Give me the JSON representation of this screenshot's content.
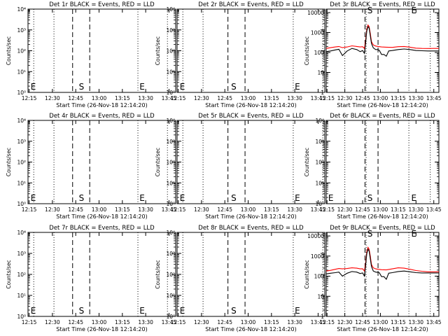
{
  "figure": {
    "ylabel": "Counts/sec",
    "xlabel": "Start Time (26-Nov-18 12:14:20)",
    "time_start_min": 734.3,
    "time_end_min": 829.3,
    "colors": {
      "events": "#000000",
      "lld": "#ff0000",
      "axes": "#000000",
      "background": "#ffffff"
    }
  },
  "chart_data": [
    {
      "id": "det-1r",
      "type": "line",
      "title": "Det 1r BLACK = Events, RED = LLD",
      "xlabel": "Start Time (26-Nov-18 12:14:20)",
      "ylabel": "Counts/sec",
      "xlim": [
        734.3,
        829.3
      ],
      "xticks": [
        735,
        750,
        765,
        780,
        795,
        810,
        825
      ],
      "xtick_labels": [
        "12:15",
        "12:30",
        "12:45",
        "13:00",
        "13:15",
        "13:30",
        "13:45"
      ],
      "yscale": "log",
      "ylim": [
        1,
        10000
      ],
      "yticks": [
        1,
        10,
        100,
        1000,
        10000
      ],
      "ytick_labels": [
        "10⁰",
        "10¹",
        "10²",
        "10³",
        "10⁴"
      ],
      "dotted_lines": [
        738,
        751,
        805,
        824
      ],
      "dashed_lines": [
        763,
        774
      ],
      "markers": [
        {
          "text": "E",
          "x": 736,
          "y": 1.5
        },
        {
          "text": "S",
          "x": 767,
          "y": 1.5
        },
        {
          "text": "E",
          "x": 806,
          "y": 1.5
        }
      ],
      "series": []
    },
    {
      "id": "det-2r",
      "type": "line",
      "title": "Det 2r BLACK = Events, RED = LLD",
      "xlabel": "Start Time (26-Nov-18 12:14:20)",
      "ylabel": "Counts/sec",
      "xlim": [
        734.3,
        829.3
      ],
      "xticks": [
        735,
        750,
        765,
        780,
        795,
        810,
        825
      ],
      "xtick_labels": [
        "12:15",
        "12:30",
        "12:45",
        "13:00",
        "13:15",
        "13:30",
        "13:45"
      ],
      "yscale": "log",
      "ylim": [
        1,
        10000
      ],
      "yticks": [
        1,
        10,
        100,
        1000,
        10000
      ],
      "ytick_labels": [
        "10⁰",
        "10¹",
        "10²",
        "10³",
        "10⁴"
      ],
      "dotted_lines": [
        738,
        751,
        809,
        828
      ],
      "dashed_lines": [
        767,
        778
      ],
      "markers": [
        {
          "text": "E",
          "x": 736,
          "y": 1.5
        },
        {
          "text": "S",
          "x": 769,
          "y": 1.5
        },
        {
          "text": "E",
          "x": 810,
          "y": 1.5
        }
      ],
      "series": []
    },
    {
      "id": "det-3r",
      "type": "line",
      "title": "Det 3r BLACK = Events, RED = LLD",
      "xlabel": "Start Time (26-Nov-18 12:14:20)",
      "ylabel": "Counts/sec",
      "xlim": [
        734.3,
        829.3
      ],
      "xticks": [
        735,
        750,
        765,
        780,
        795,
        810,
        825
      ],
      "xtick_labels": [
        "12:15",
        "12:30",
        "12:45",
        "13:00",
        "13:15",
        "13:30",
        "13:45"
      ],
      "yscale": "log",
      "ylim": [
        1,
        15000
      ],
      "yticks": [
        1,
        10,
        100,
        1000,
        10000
      ],
      "ytick_labels": [
        "1",
        "10",
        "100",
        "1000",
        "10000"
      ],
      "dotted_lines": [
        750,
        768,
        804,
        822
      ],
      "dashed_lines": [
        767,
        778
      ],
      "markers": [
        {
          "text": "S",
          "x": 769,
          "y": 15000
        },
        {
          "text": "E",
          "x": 806,
          "y": 15000
        }
      ],
      "series": [
        {
          "name": "LLD",
          "color": "#ff0000",
          "x": [
            734.3,
            738,
            742,
            745,
            748,
            752,
            756,
            760,
            763,
            765,
            766.5,
            767.5,
            768.5,
            769.5,
            770.5,
            771.5,
            772.5,
            774,
            776,
            778,
            781,
            785,
            790,
            795,
            800,
            805,
            810,
            815,
            820,
            825,
            829.3
          ],
          "y": [
            160,
            175,
            190,
            200,
            175,
            190,
            215,
            200,
            190,
            195,
            160,
            400,
            1500,
            2400,
            2000,
            900,
            350,
            240,
            210,
            200,
            190,
            185,
            180,
            195,
            200,
            185,
            165,
            160,
            158,
            160,
            160
          ]
        },
        {
          "name": "Events",
          "color": "#000000",
          "x": [
            734.3,
            738,
            742,
            745,
            748,
            752,
            756,
            760,
            763,
            765,
            766.5,
            767.5,
            768.5,
            769.5,
            770.5,
            771.5,
            772.5,
            774,
            776,
            777.5,
            779,
            781,
            783,
            785,
            787,
            790,
            795,
            800,
            805,
            810,
            815,
            820,
            825,
            829.3
          ],
          "y": [
            110,
            120,
            135,
            145,
            70,
            120,
            160,
            140,
            110,
            125,
            90,
            300,
            1200,
            2000,
            1700,
            700,
            280,
            170,
            140,
            140,
            130,
            80,
            80,
            65,
            120,
            125,
            140,
            150,
            140,
            125,
            122,
            120,
            120,
            120
          ]
        }
      ]
    },
    {
      "id": "det-4r",
      "type": "line",
      "title": "Det 4r BLACK = Events, RED = LLD",
      "xlabel": "Start Time (26-Nov-18 12:14:20)",
      "ylabel": "Counts/sec",
      "xlim": [
        734.3,
        829.3
      ],
      "xticks": [
        735,
        750,
        765,
        780,
        795,
        810,
        825
      ],
      "xtick_labels": [
        "12:15",
        "12:30",
        "12:45",
        "13:00",
        "13:15",
        "13:30",
        "13:45"
      ],
      "yscale": "log",
      "ylim": [
        1,
        10000
      ],
      "yticks": [
        1,
        10,
        100,
        1000,
        10000
      ],
      "ytick_labels": [
        "10⁰",
        "10¹",
        "10²",
        "10³",
        "10⁴"
      ],
      "dotted_lines": [
        738,
        751,
        805,
        824
      ],
      "dashed_lines": [
        763,
        774
      ],
      "markers": [
        {
          "text": "E",
          "x": 736,
          "y": 1.5
        },
        {
          "text": "S",
          "x": 767,
          "y": 1.5
        },
        {
          "text": "E",
          "x": 806,
          "y": 1.5
        }
      ],
      "series": []
    },
    {
      "id": "det-5r",
      "type": "line",
      "title": "Det 5r BLACK = Events, RED = LLD",
      "xlabel": "Start Time (26-Nov-18 12:14:20)",
      "ylabel": "Counts/sec",
      "xlim": [
        734.3,
        829.3
      ],
      "xticks": [
        735,
        750,
        765,
        780,
        795,
        810,
        825
      ],
      "xtick_labels": [
        "12:15",
        "12:30",
        "12:45",
        "13:00",
        "13:15",
        "13:30",
        "13:45"
      ],
      "yscale": "log",
      "ylim": [
        1,
        10000
      ],
      "yticks": [
        1,
        10,
        100,
        1000,
        10000
      ],
      "ytick_labels": [
        "10⁰",
        "10¹",
        "10²",
        "10³",
        "10⁴"
      ],
      "dotted_lines": [
        738,
        751,
        809,
        828
      ],
      "dashed_lines": [
        767,
        778
      ],
      "markers": [
        {
          "text": "E",
          "x": 736,
          "y": 1.5
        },
        {
          "text": "S",
          "x": 769,
          "y": 1.5
        },
        {
          "text": "E",
          "x": 810,
          "y": 1.5
        }
      ],
      "series": []
    },
    {
      "id": "det-6r",
      "type": "line",
      "title": "Det 6r BLACK = Events, RED = LLD",
      "xlabel": "Start Time (26-Nov-18 12:14:20)",
      "ylabel": "Counts/sec",
      "xlim": [
        734.3,
        829.3
      ],
      "xticks": [
        735,
        750,
        765,
        780,
        795,
        810,
        825
      ],
      "xtick_labels": [
        "12:15",
        "12:30",
        "12:45",
        "13:00",
        "13:15",
        "13:30",
        "13:45"
      ],
      "yscale": "log",
      "ylim": [
        1,
        10000
      ],
      "yticks": [
        1,
        10,
        100,
        1000,
        10000
      ],
      "ytick_labels": [
        "10⁰",
        "10¹",
        "10²",
        "10³",
        "10⁴"
      ],
      "dotted_lines": [
        750,
        768,
        804,
        822
      ],
      "dashed_lines": [
        767,
        778
      ],
      "markers": [
        {
          "text": "E",
          "x": 736,
          "y": 1.5
        },
        {
          "text": "S",
          "x": 769,
          "y": 1.5
        },
        {
          "text": "E",
          "x": 806,
          "y": 1.5
        }
      ],
      "series": []
    },
    {
      "id": "det-7r",
      "type": "line",
      "title": "Det 7r BLACK = Events, RED = LLD",
      "xlabel": "Start Time (26-Nov-18 12:14:20)",
      "ylabel": "Counts/sec",
      "xlim": [
        734.3,
        829.3
      ],
      "xticks": [
        735,
        750,
        765,
        780,
        795,
        810,
        825
      ],
      "xtick_labels": [
        "12:15",
        "12:30",
        "12:45",
        "13:00",
        "13:15",
        "13:30",
        "13:45"
      ],
      "yscale": "log",
      "ylim": [
        1,
        10000
      ],
      "yticks": [
        1,
        10,
        100,
        1000,
        10000
      ],
      "ytick_labels": [
        "10⁰",
        "10¹",
        "10²",
        "10³",
        "10⁴"
      ],
      "dotted_lines": [
        738,
        751,
        805,
        824
      ],
      "dashed_lines": [
        763,
        774
      ],
      "markers": [
        {
          "text": "E",
          "x": 736,
          "y": 1.5
        },
        {
          "text": "S",
          "x": 767,
          "y": 1.5
        },
        {
          "text": "E",
          "x": 806,
          "y": 1.5
        }
      ],
      "series": []
    },
    {
      "id": "det-8r",
      "type": "line",
      "title": "Det 8r BLACK = Events, RED = LLD",
      "xlabel": "Start Time (26-Nov-18 12:14:20)",
      "ylabel": "Counts/sec",
      "xlim": [
        734.3,
        829.3
      ],
      "xticks": [
        735,
        750,
        765,
        780,
        795,
        810,
        825
      ],
      "xtick_labels": [
        "12:15",
        "12:30",
        "12:45",
        "13:00",
        "13:15",
        "13:30",
        "13:45"
      ],
      "yscale": "log",
      "ylim": [
        1,
        10000
      ],
      "yticks": [
        1,
        10,
        100,
        1000,
        10000
      ],
      "ytick_labels": [
        "10⁰",
        "10¹",
        "10²",
        "10³",
        "10⁴"
      ],
      "dotted_lines": [
        738,
        751,
        809,
        828
      ],
      "dashed_lines": [
        767,
        778
      ],
      "markers": [
        {
          "text": "E",
          "x": 736,
          "y": 1.5
        },
        {
          "text": "S",
          "x": 769,
          "y": 1.5
        },
        {
          "text": "E",
          "x": 810,
          "y": 1.5
        }
      ],
      "series": []
    },
    {
      "id": "det-9r",
      "type": "line",
      "title": "Det 9r BLACK = Events, RED = LLD",
      "xlabel": "Start Time (26-Nov-18 12:14:20)",
      "ylabel": "Counts/sec",
      "xlim": [
        734.3,
        829.3
      ],
      "xticks": [
        735,
        750,
        765,
        780,
        795,
        810,
        825
      ],
      "xtick_labels": [
        "12:15",
        "12:30",
        "12:45",
        "13:00",
        "13:15",
        "13:30",
        "13:45"
      ],
      "yscale": "log",
      "ylim": [
        1,
        15000
      ],
      "yticks": [
        1,
        10,
        100,
        1000,
        10000
      ],
      "ytick_labels": [
        "1",
        "10",
        "100",
        "1000",
        "10000"
      ],
      "dotted_lines": [
        750,
        768,
        804,
        822
      ],
      "dashed_lines": [
        767,
        778
      ],
      "markers": [
        {
          "text": "S",
          "x": 769,
          "y": 15000
        },
        {
          "text": "E",
          "x": 806,
          "y": 15000
        }
      ],
      "series": [
        {
          "name": "LLD",
          "color": "#ff0000",
          "x": [
            734.3,
            738,
            742,
            745,
            748,
            752,
            756,
            760,
            763,
            765,
            766.5,
            767.5,
            768.5,
            769.5,
            770.5,
            771.5,
            772.5,
            774,
            776,
            778,
            781,
            785,
            790,
            795,
            800,
            805,
            810,
            815,
            820,
            825,
            829.3
          ],
          "y": [
            180,
            195,
            220,
            240,
            230,
            240,
            260,
            250,
            230,
            235,
            180,
            450,
            1700,
            2700,
            2200,
            1000,
            380,
            260,
            230,
            220,
            210,
            205,
            230,
            260,
            250,
            220,
            190,
            175,
            165,
            165,
            165
          ]
        },
        {
          "name": "Events",
          "color": "#000000",
          "x": [
            734.3,
            738,
            742,
            745,
            748,
            752,
            756,
            760,
            763,
            765,
            766.5,
            767.5,
            768.5,
            769.5,
            770.5,
            771.5,
            772.5,
            774,
            776,
            777.5,
            779,
            781,
            783,
            785,
            787,
            790,
            795,
            800,
            805,
            810,
            815,
            820,
            825,
            829.3
          ],
          "y": [
            130,
            140,
            150,
            160,
            100,
            140,
            170,
            160,
            135,
            145,
            100,
            330,
            1300,
            2200,
            1800,
            750,
            300,
            180,
            160,
            155,
            150,
            95,
            95,
            70,
            140,
            150,
            170,
            180,
            165,
            150,
            145,
            145,
            145,
            145
          ]
        }
      ]
    }
  ]
}
